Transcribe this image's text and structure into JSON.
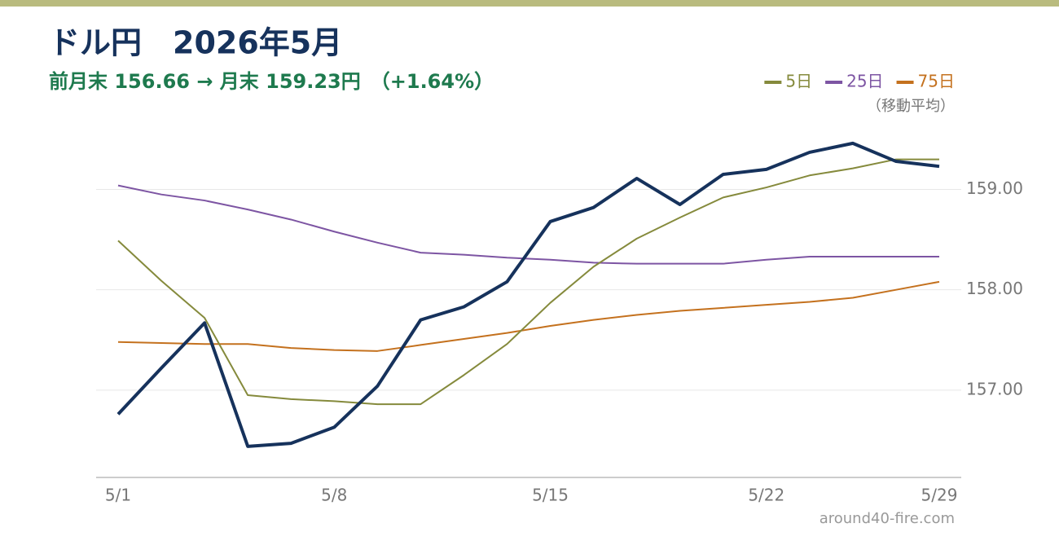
{
  "chart_data": {
    "type": "line",
    "title": "ドル円　2026年5月",
    "subtitle": "前月末 156.66 → 月末 159.23円　（+1.64%）",
    "legend_title": "（移動平均）",
    "legend_position": "top-right",
    "source": "around40-fire.com",
    "categories": [
      "5/1",
      null,
      null,
      null,
      null,
      "5/8",
      null,
      null,
      null,
      null,
      "5/15",
      null,
      null,
      null,
      null,
      "5/22",
      null,
      null,
      null,
      "5/29"
    ],
    "series": [
      {
        "color": "#16325c",
        "width": 4,
        "values": [
          156.76,
          157.22,
          157.67,
          156.44,
          156.47,
          156.63,
          157.04,
          157.7,
          157.83,
          158.08,
          158.68,
          158.82,
          159.11,
          158.85,
          159.15,
          159.2,
          159.37,
          159.46,
          159.28,
          159.23
        ]
      },
      {
        "name": "5日",
        "color": "#858a3c",
        "width": 2,
        "values": [
          158.49,
          158.09,
          157.72,
          156.95,
          156.91,
          156.89,
          156.86,
          156.86,
          157.15,
          157.46,
          157.87,
          158.23,
          158.51,
          158.72,
          158.92,
          159.02,
          159.14,
          159.21,
          159.3,
          159.3
        ]
      },
      {
        "name": "25日",
        "color": "#7d55a3",
        "width": 2,
        "values": [
          159.04,
          158.95,
          158.89,
          158.8,
          158.7,
          158.58,
          158.47,
          158.37,
          158.35,
          158.32,
          158.3,
          158.27,
          158.26,
          158.26,
          158.26,
          158.3,
          158.33,
          158.33,
          158.33,
          158.33
        ]
      },
      {
        "name": "75日",
        "color": "#c4711e",
        "width": 2,
        "values": [
          157.48,
          157.47,
          157.46,
          157.46,
          157.42,
          157.4,
          157.39,
          157.45,
          157.51,
          157.57,
          157.64,
          157.7,
          157.75,
          157.79,
          157.82,
          157.85,
          157.88,
          157.92,
          158.0,
          158.08
        ]
      }
    ],
    "ylim": [
      156.13,
      159.67
    ],
    "yticks": [
      {
        "value": 157,
        "label": "157.00"
      },
      {
        "value": 158,
        "label": "158.00"
      },
      {
        "value": 159,
        "label": "159.00"
      }
    ],
    "grid": true
  }
}
